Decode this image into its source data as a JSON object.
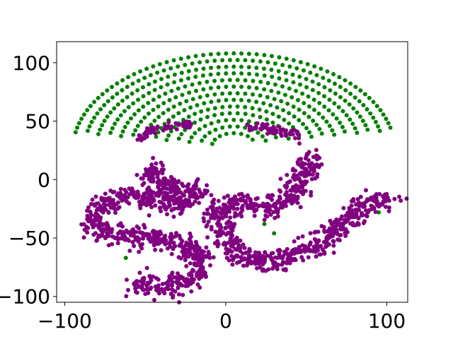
{
  "chart_data": {
    "type": "scatter",
    "title": "",
    "xlabel": "",
    "ylabel": "",
    "xlim": [
      -105,
      113
    ],
    "ylim": [
      -105,
      118
    ],
    "xticks": [
      -100,
      0,
      100
    ],
    "xtick_labels": [
      "−100",
      "0",
      "100"
    ],
    "yticks": [
      100,
      50,
      0,
      -50,
      -100
    ],
    "ytick_labels": [
      "100",
      "50",
      "0",
      "−50",
      "−100"
    ],
    "grid": false,
    "legend": "none",
    "colors": {
      "green": "#008000",
      "purple": "#800080"
    },
    "series": [
      {
        "color": "green",
        "description_region": "dome of evenly spaced points",
        "generator": "dome",
        "center": [
          5,
          25
        ],
        "radius": [
          100,
          83
        ],
        "y_min": -10,
        "spacing": 8.5,
        "extra_points": [
          [
            -62,
            -67
          ],
          [
            30,
            -46
          ],
          [
            24,
            -38
          ],
          [
            95,
            -28
          ]
        ]
      },
      {
        "color": "purple",
        "generator": "curves",
        "curves": [
          {
            "noise": 2.0,
            "points": [
              [
                -55,
                34
              ],
              [
                -50,
                40
              ],
              [
                -40,
                45
              ],
              [
                -25,
                47
              ],
              [
                -20,
                48
              ]
            ]
          },
          {
            "noise": 2.0,
            "points": [
              [
                12,
                45
              ],
              [
                25,
                44
              ],
              [
                38,
                40
              ],
              [
                45,
                37
              ]
            ]
          },
          {
            "noise": 4.5,
            "points": [
              [
                -47,
                12
              ],
              [
                -43,
                2
              ],
              [
                -35,
                -8
              ],
              [
                -25,
                -6
              ],
              [
                -18,
                -10
              ],
              [
                -28,
                -22
              ],
              [
                -55,
                -14
              ],
              [
                -73,
                -18
              ],
              [
                -82,
                -28
              ],
              [
                -80,
                -42
              ],
              [
                -65,
                -48
              ],
              [
                -48,
                -50
              ],
              [
                -30,
                -54
              ],
              [
                -17,
                -62
              ],
              [
                -18,
                -80
              ],
              [
                -25,
                -88
              ],
              [
                -40,
                -92
              ],
              [
                -57,
                -90
              ]
            ]
          },
          {
            "noise": 4.5,
            "points": [
              [
                53,
                22
              ],
              [
                50,
                10
              ],
              [
                45,
                -5
              ],
              [
                38,
                -20
              ],
              [
                25,
                -25
              ],
              [
                5,
                -20
              ],
              [
                -5,
                -27
              ],
              [
                -3,
                -42
              ],
              [
                5,
                -58
              ],
              [
                18,
                -70
              ],
              [
                35,
                -68
              ],
              [
                55,
                -58
              ],
              [
                72,
                -38
              ],
              [
                88,
                -22
              ],
              [
                102,
                -15
              ]
            ]
          }
        ]
      }
    ]
  }
}
